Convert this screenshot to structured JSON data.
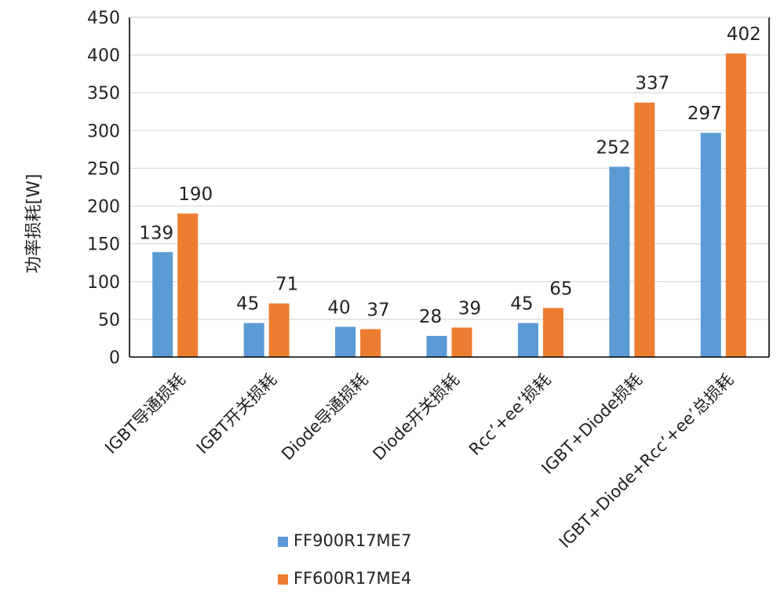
{
  "chart_data": {
    "type": "bar",
    "title": "",
    "xlabel": "",
    "ylabel": "功率损耗[W]",
    "ylim": [
      0,
      450
    ],
    "ytick_step": 50,
    "grid": true,
    "legend_position": "bottom-left",
    "categories": [
      "IGBT导通损耗",
      "IGBT开关损耗",
      "Diode导通损耗",
      "Diode开关损耗",
      "Rcc’+ee’损耗",
      "IGBT+Diode损耗",
      "IGBT+Diode+Rcc’+ee’总损耗"
    ],
    "series": [
      {
        "name": "FF900R17ME7",
        "color": "#5b9bd5",
        "values": [
          139,
          45,
          40,
          28,
          45,
          252,
          297
        ]
      },
      {
        "name": "FF600R17ME4",
        "color": "#ed7d31",
        "values": [
          190,
          71,
          37,
          39,
          65,
          337,
          402
        ]
      }
    ]
  }
}
